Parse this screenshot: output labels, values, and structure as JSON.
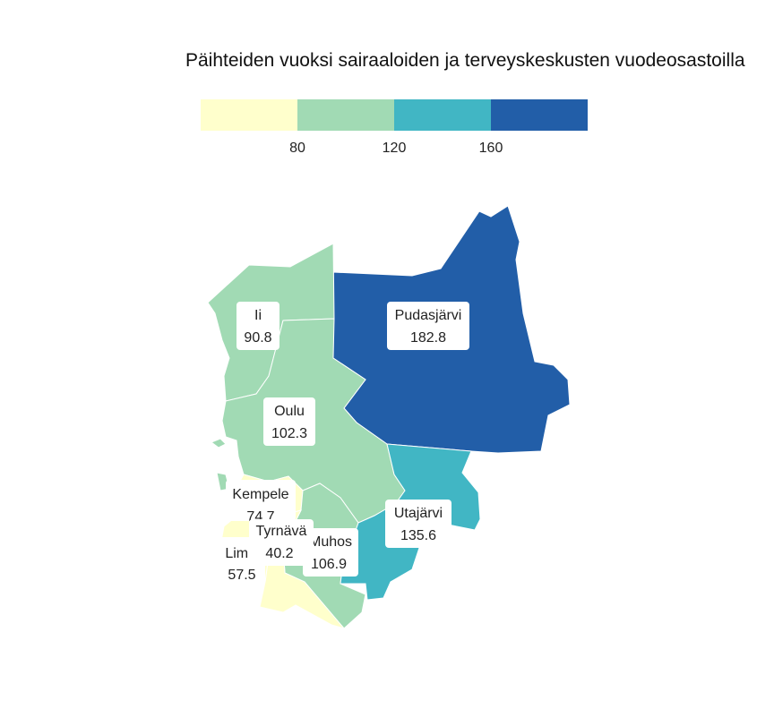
{
  "title": "Päihteiden vuoksi sairaaloiden ja terveyskeskusten vuodeosastoilla",
  "legend": {
    "breaks": [
      "80",
      "120",
      "160"
    ],
    "colors": [
      "#ffffcc",
      "#a1dab4",
      "#41b6c4",
      "#225ea8"
    ]
  },
  "regions": [
    {
      "name": "Ii",
      "value": "90.8",
      "color": "#a1dab4"
    },
    {
      "name": "Pudasjärvi",
      "value": "182.8",
      "color": "#225ea8"
    },
    {
      "name": "Oulu",
      "value": "102.3",
      "color": "#a1dab4"
    },
    {
      "name": "Kempele",
      "value": "74.7",
      "color": "#ffffcc"
    },
    {
      "name": "Tyrnävä",
      "value": "40.2",
      "color": "#ffffcc"
    },
    {
      "name": "Limi",
      "value": "57.5",
      "color": "#ffffcc"
    },
    {
      "name": "Muhos",
      "value": "106.9",
      "color": "#a1dab4"
    },
    {
      "name": "Utajärvi",
      "value": "135.6",
      "color": "#41b6c4"
    }
  ]
}
